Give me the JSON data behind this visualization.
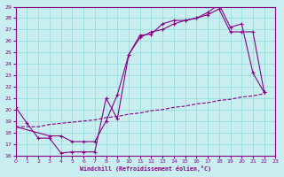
{
  "xlabel": "Windchill (Refroidissement éolien,°C)",
  "xlim": [
    0,
    23
  ],
  "ylim": [
    16,
    29
  ],
  "yticks": [
    16,
    17,
    18,
    19,
    20,
    21,
    22,
    23,
    24,
    25,
    26,
    27,
    28,
    29
  ],
  "xticks": [
    0,
    1,
    2,
    3,
    4,
    5,
    6,
    7,
    8,
    9,
    10,
    11,
    12,
    13,
    14,
    15,
    16,
    17,
    18,
    19,
    20,
    21,
    22,
    23
  ],
  "bg_color": "#c8eef0",
  "line_color": "#880088",
  "grid_color": "#99dddd",
  "line1_x": [
    0,
    1,
    2,
    3,
    4,
    5,
    6,
    7,
    8,
    9,
    10,
    11,
    12,
    13,
    14,
    15,
    16,
    17,
    18,
    19,
    20,
    21,
    22
  ],
  "line1_y": [
    20.2,
    18.8,
    17.5,
    17.5,
    16.2,
    16.3,
    16.3,
    16.3,
    21.0,
    19.2,
    24.8,
    26.5,
    26.6,
    27.5,
    27.8,
    27.8,
    28.0,
    28.5,
    29.2,
    27.2,
    27.5,
    23.2,
    21.5
  ],
  "line2_x": [
    0,
    1,
    2,
    3,
    4,
    5,
    6,
    7,
    8,
    9,
    10,
    11,
    12,
    13,
    14,
    15,
    16,
    17,
    18,
    19,
    20,
    21,
    22
  ],
  "line2_y": [
    18.5,
    18.5,
    18.5,
    18.7,
    18.8,
    18.9,
    19.0,
    19.1,
    19.3,
    19.4,
    19.6,
    19.7,
    19.9,
    20.0,
    20.2,
    20.3,
    20.5,
    20.6,
    20.8,
    20.9,
    21.1,
    21.2,
    21.4
  ],
  "line3_x": [
    0,
    3,
    4,
    5,
    6,
    7,
    8,
    9,
    10,
    11,
    12,
    13,
    14,
    15,
    16,
    17,
    18,
    19,
    20,
    21,
    22
  ],
  "line3_y": [
    18.5,
    17.7,
    17.7,
    17.2,
    17.2,
    17.2,
    19.0,
    21.3,
    24.8,
    26.3,
    26.8,
    27.0,
    27.5,
    27.8,
    28.0,
    28.3,
    28.8,
    26.8,
    26.8,
    26.8,
    21.5
  ]
}
